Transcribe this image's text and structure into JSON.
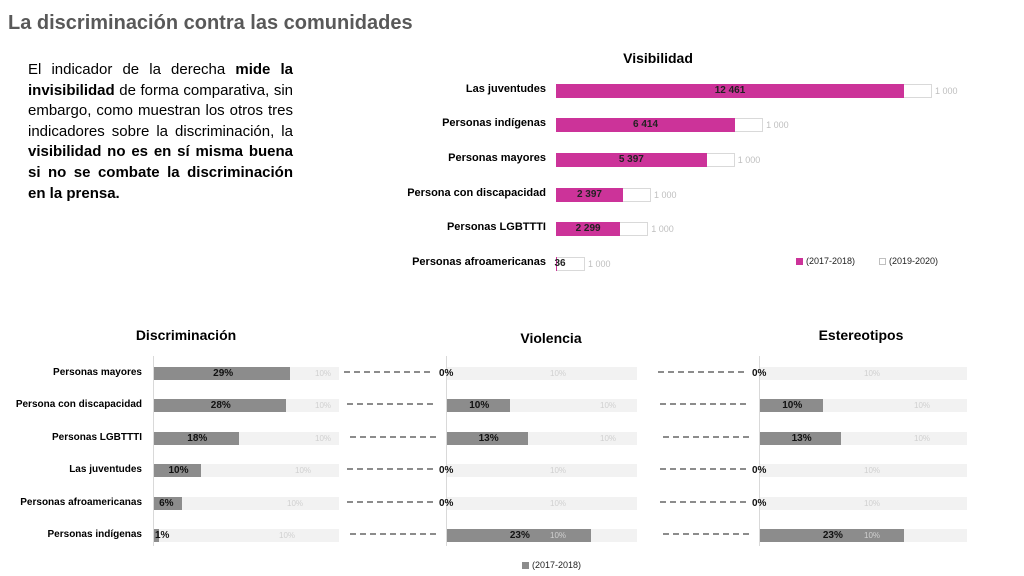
{
  "title": "La discriminación contra las comunidades",
  "paragraph": {
    "p1": "El indicador de la derecha ",
    "b1": "mide la invisibilidad",
    "p2": " de forma comparativa, sin embargo, como muestran los otros tres indicadores sobre la discriminación, la ",
    "b2": "visibilidad no es en sí misma buena si no se combate la discriminación en la prensa."
  },
  "legend_top": {
    "a": "(2017-2018)",
    "b": "(2019-2020)"
  },
  "legend_bottom": {
    "a": "(2017-2018)"
  },
  "colors": {
    "pink": "#cc3399",
    "gray": "#8c8c8c",
    "track": "#f2f2f2"
  },
  "chart_data": [
    {
      "type": "bar",
      "orientation": "horizontal",
      "title": "Visibilidad",
      "categories": [
        "Las juventudes",
        "Personas indígenas",
        "Personas mayores",
        "Persona con discapacidad",
        "Personas LGBTTTI",
        "Personas afroamericanas"
      ],
      "series": [
        {
          "name": "(2017-2018)",
          "values": [
            12461,
            6414,
            5397,
            2397,
            2299,
            36
          ],
          "labels": [
            "12 461",
            "6 414",
            "5 397",
            "2 397",
            "2 299",
            "36"
          ]
        },
        {
          "name": "(2019-2020)",
          "values": [
            1000,
            1000,
            1000,
            1000,
            1000,
            1000
          ],
          "labels": [
            "1 000",
            "1 000",
            "1 000",
            "1 000",
            "1 000",
            "1 000"
          ]
        }
      ]
    },
    {
      "type": "bar",
      "orientation": "horizontal",
      "title": "Discriminación",
      "categories": [
        "Personas mayores",
        "Persona con discapacidad",
        "Personas LGBTTTI",
        "Las juventudes",
        "Personas afroamericanas",
        "Personas indígenas"
      ],
      "values": [
        29,
        28,
        18,
        10,
        6,
        1
      ],
      "labels": [
        "29%",
        "28%",
        "18%",
        "10%",
        "6%",
        "1%"
      ],
      "ref_labels": [
        "10%",
        "10%",
        "10%",
        "10%",
        "10%",
        "10%"
      ]
    },
    {
      "type": "bar",
      "orientation": "horizontal",
      "title": "Violencia",
      "categories": [
        "Personas mayores",
        "Persona con discapacidad",
        "Personas LGBTTTI",
        "Las juventudes",
        "Personas afroamericanas",
        "Personas indígenas"
      ],
      "values": [
        0,
        10,
        13,
        0,
        0,
        23
      ],
      "labels": [
        "0%",
        "10%",
        "13%",
        "0%",
        "0%",
        "23%"
      ],
      "ref_labels": [
        "10%",
        "10%",
        "10%",
        "10%",
        "10%",
        "10%"
      ]
    },
    {
      "type": "bar",
      "orientation": "horizontal",
      "title": "Estereotipos",
      "categories": [
        "Personas mayores",
        "Persona con discapacidad",
        "Personas LGBTTTI",
        "Las juventudes",
        "Personas afroamericanas",
        "Personas indígenas"
      ],
      "values": [
        0,
        10,
        13,
        0,
        0,
        23
      ],
      "labels": [
        "0%",
        "10%",
        "13%",
        "0%",
        "0%",
        "23%"
      ],
      "ref_labels": [
        "10%",
        "10%",
        "10%",
        "10%",
        "10%",
        "10%"
      ]
    }
  ]
}
